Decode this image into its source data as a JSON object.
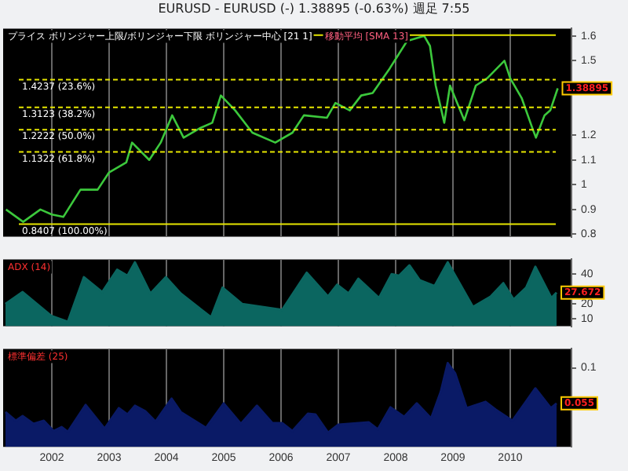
{
  "chart_data": [
    {
      "type": "line",
      "title": "EURUSD - EURUSD (-)   1.38895 (-0.63%)   週足  7:55",
      "annotations": [
        "プライス ボリンジャー上限/ボリンジャー下限 ボリンジャー中心 [21 1]",
        "移動平均 [SMA 13]"
      ],
      "xlim": [
        2001.15,
        2011.07
      ],
      "xticks": [
        2002,
        2003,
        2004,
        2005,
        2006,
        2007,
        2008,
        2009,
        2010
      ],
      "ylim": [
        0.79,
        1.63
      ],
      "yticks": [
        0.8,
        0.9,
        1,
        1.1,
        1.2,
        1.5,
        1.6
      ],
      "tick_labels": "y",
      "grid": "x",
      "legend": false,
      "series": [
        {
          "color": "#3cc83c",
          "x": [
            2001.2,
            2001.5,
            2001.8,
            2002.0,
            2002.2,
            2002.5,
            2002.8,
            2003.0,
            2003.3,
            2003.4,
            2003.7,
            2003.9,
            2004.1,
            2004.3,
            2004.6,
            2004.8,
            2004.95,
            2005.2,
            2005.5,
            2005.9,
            2006.2,
            2006.4,
            2006.8,
            2006.95,
            2007.2,
            2007.4,
            2007.6,
            2007.9,
            2008.2,
            2008.5,
            2008.6,
            2008.7,
            2008.85,
            2008.95,
            2009.2,
            2009.4,
            2009.6,
            2009.9,
            2010.0,
            2010.2,
            2010.4,
            2010.45,
            2010.6,
            2010.7,
            2010.83
          ],
          "values": [
            0.9,
            0.85,
            0.9,
            0.88,
            0.87,
            0.98,
            0.98,
            1.05,
            1.09,
            1.17,
            1.1,
            1.17,
            1.28,
            1.19,
            1.23,
            1.25,
            1.36,
            1.3,
            1.21,
            1.17,
            1.21,
            1.28,
            1.27,
            1.33,
            1.3,
            1.36,
            1.37,
            1.47,
            1.58,
            1.6,
            1.56,
            1.4,
            1.25,
            1.4,
            1.26,
            1.4,
            1.43,
            1.5,
            1.43,
            1.35,
            1.22,
            1.19,
            1.28,
            1.3,
            1.38895
          ],
          "value_labels": [
            null,
            null,
            null,
            null,
            null,
            null,
            null,
            null,
            null,
            null,
            null,
            null,
            null,
            null,
            null,
            null,
            null,
            null,
            null,
            null,
            null,
            null,
            null,
            null,
            null,
            null,
            null,
            null,
            null,
            null,
            null,
            null,
            null,
            null,
            null,
            null,
            null,
            null,
            null,
            null,
            null,
            null,
            null,
            null,
            "1.38895"
          ]
        }
      ],
      "ref_lines": [
        {
          "axis": "y",
          "value": 1.6038,
          "label": null,
          "color": "#e6e600",
          "line_style": "solid"
        },
        {
          "axis": "y",
          "value": 1.4237,
          "label": "1.4237 (23.6%)",
          "color": "#e6e600",
          "line_style": "dashed"
        },
        {
          "axis": "y",
          "value": 1.3123,
          "label": "1.3123 (38.2%)",
          "color": "#e6e600",
          "line_style": "dashed"
        },
        {
          "axis": "y",
          "value": 1.2222,
          "label": "1.2222 (50.0%)",
          "color": "#e6e600",
          "line_style": "dashed"
        },
        {
          "axis": "y",
          "value": 1.1322,
          "label": "1.1322 (61.8%)",
          "color": "#e6e600",
          "line_style": "dashed"
        },
        {
          "axis": "y",
          "value": 0.8407,
          "label": "0.8407 (100.00%)",
          "color": "#e6e600",
          "line_style": "solid"
        }
      ]
    },
    {
      "type": "area",
      "annotations": [
        "ADX (14)"
      ],
      "xlim": [
        2001.15,
        2011.07
      ],
      "xticks": [
        2002,
        2003,
        2004,
        2005,
        2006,
        2007,
        2008,
        2009,
        2010
      ],
      "ylim": [
        5,
        50
      ],
      "yticks": [
        10,
        20,
        40
      ],
      "tick_labels": "y",
      "grid": "x",
      "legend": false,
      "series": [
        {
          "color": "#0b6660",
          "x": [
            2001.19,
            2001.49,
            2001.99,
            2002.28,
            2002.56,
            2002.88,
            2003.14,
            2003.32,
            2003.45,
            2003.72,
            2003.99,
            2004.25,
            2004.78,
            2004.98,
            2005.32,
            2006.02,
            2006.45,
            2006.82,
            2006.98,
            2007.18,
            2007.35,
            2007.71,
            2007.93,
            2008.06,
            2008.24,
            2008.42,
            2008.68,
            2008.91,
            2009.35,
            2009.66,
            2009.88,
            2010.06,
            2010.28,
            2010.44,
            2010.72,
            2010.81
          ],
          "values": [
            20,
            28,
            12,
            8,
            38,
            28,
            43,
            39,
            48,
            27,
            38,
            27,
            11,
            31,
            20,
            16,
            41,
            25,
            33,
            27,
            37,
            24,
            40,
            39,
            46,
            36,
            32,
            48,
            18,
            25,
            34,
            23,
            31,
            45,
            24,
            27.672
          ],
          "value_labels": [
            null,
            null,
            null,
            null,
            null,
            null,
            null,
            null,
            null,
            null,
            null,
            null,
            null,
            null,
            null,
            null,
            null,
            null,
            null,
            null,
            null,
            null,
            null,
            null,
            null,
            null,
            null,
            null,
            null,
            null,
            null,
            null,
            null,
            null,
            null,
            "27.672"
          ]
        }
      ]
    },
    {
      "type": "area",
      "annotations": [
        "標準偏差 (25)"
      ],
      "xlim": [
        2001.15,
        2011.07
      ],
      "xticks": [
        2002,
        2003,
        2004,
        2005,
        2006,
        2007,
        2008,
        2009,
        2010
      ],
      "ylim": [
        0,
        0.124
      ],
      "yticks": [
        0.1
      ],
      "grid": "x",
      "legend": false,
      "series": [
        {
          "color": "#0a1a66",
          "x": [
            2001.19,
            2001.37,
            2001.49,
            2001.68,
            2001.86,
            2002.03,
            2002.17,
            2002.28,
            2002.59,
            2002.92,
            2003.17,
            2003.32,
            2003.45,
            2003.63,
            2003.81,
            2004.09,
            2004.25,
            2004.47,
            2004.69,
            2005.0,
            2005.3,
            2005.58,
            2005.85,
            2006.02,
            2006.2,
            2006.47,
            2006.6,
            2006.82,
            2007.0,
            2007.53,
            2007.69,
            2007.91,
            2008.15,
            2008.37,
            2008.62,
            2008.79,
            2008.91,
            2009.04,
            2009.24,
            2009.57,
            2009.75,
            2010.04,
            2010.44,
            2010.71,
            2010.81
          ],
          "values": [
            0.044,
            0.033,
            0.039,
            0.029,
            0.033,
            0.02,
            0.025,
            0.019,
            0.053,
            0.023,
            0.049,
            0.041,
            0.052,
            0.045,
            0.032,
            0.061,
            0.044,
            0.034,
            0.024,
            0.055,
            0.029,
            0.052,
            0.03,
            0.03,
            0.02,
            0.042,
            0.041,
            0.018,
            0.028,
            0.031,
            0.022,
            0.05,
            0.038,
            0.055,
            0.036,
            0.07,
            0.106,
            0.093,
            0.049,
            0.057,
            0.047,
            0.033,
            0.074,
            0.049,
            0.055
          ],
          "value_labels": [
            null,
            null,
            null,
            null,
            null,
            null,
            null,
            null,
            null,
            null,
            null,
            null,
            null,
            null,
            null,
            null,
            null,
            null,
            null,
            null,
            null,
            null,
            null,
            null,
            null,
            null,
            null,
            null,
            null,
            null,
            null,
            null,
            null,
            null,
            null,
            null,
            null,
            null,
            null,
            null,
            null,
            null,
            null,
            null,
            "0.055"
          ]
        }
      ]
    }
  ]
}
